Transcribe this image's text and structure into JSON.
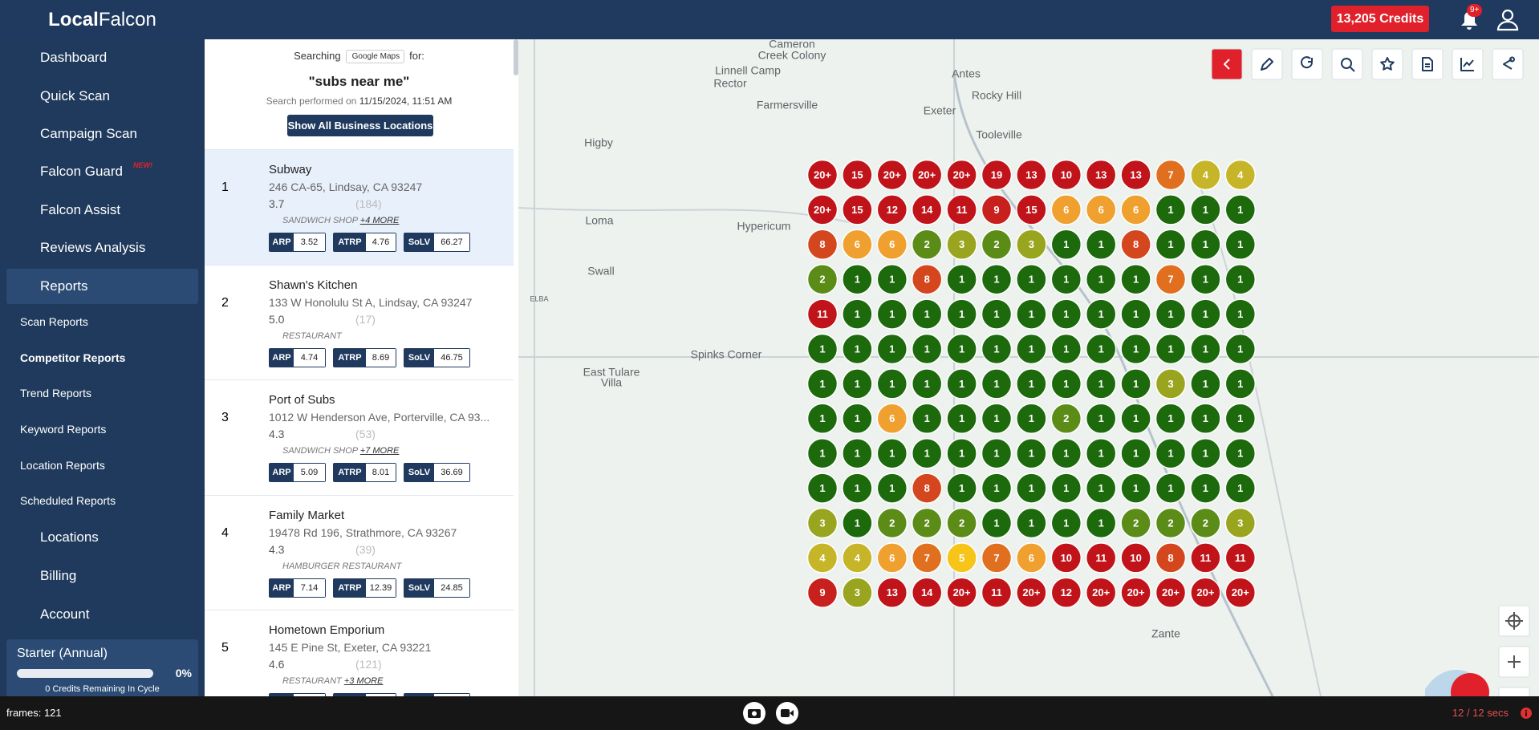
{
  "app": {
    "logo_bold": "Local",
    "logo_light": "Falcon",
    "credits": "13,205 Credits",
    "notifications": "9+"
  },
  "nav": [
    {
      "label": "Dashboard"
    },
    {
      "label": "Quick Scan"
    },
    {
      "label": "Campaign Scan"
    },
    {
      "label": "Falcon Guard",
      "badge": "NEW!"
    },
    {
      "label": "Falcon Assist"
    },
    {
      "label": "Reviews Analysis"
    },
    {
      "label": "Reports"
    }
  ],
  "reports_menu": [
    "Scan Reports",
    "Competitor Reports",
    "Trend Reports",
    "Keyword Reports",
    "Location Reports",
    "Scheduled Reports"
  ],
  "nav_bottom": [
    "Locations",
    "Billing",
    "Account"
  ],
  "plan": {
    "name": "Starter (Annual)",
    "percent": "0%",
    "remaining": "0 Credits Remaining In Cycle"
  },
  "search": {
    "searching": "Searching",
    "engine": "Google Maps",
    "for": "for:",
    "keyword": "\"subs near me\"",
    "performed": "Search performed on",
    "date": "11/15/2024, 11:51 AM",
    "button": "Show All Business Locations"
  },
  "metric_labels": [
    "ARP",
    "ATRP",
    "SoLV"
  ],
  "results": [
    {
      "rank": 1,
      "name": "Subway",
      "address": "246 CA-65, Lindsay, CA 93247",
      "rating": "3.7",
      "reviews": "(184)",
      "category": "SANDWICH SHOP",
      "more": "+4 MORE",
      "metrics": [
        3.52,
        4.76,
        66.27
      ]
    },
    {
      "rank": 2,
      "name": "Shawn's Kitchen",
      "address": "133 W Honolulu St A, Lindsay, CA 93247",
      "rating": "5.0",
      "reviews": "(17)",
      "category": "RESTAURANT",
      "metrics": [
        4.74,
        8.69,
        46.75
      ]
    },
    {
      "rank": 3,
      "name": "Port of Subs",
      "address": "1012 W Henderson Ave, Porterville, CA 93...",
      "rating": "4.3",
      "reviews": "(53)",
      "category": "SANDWICH SHOP",
      "more": "+7 MORE",
      "metrics": [
        5.09,
        8.01,
        36.69
      ]
    },
    {
      "rank": 4,
      "name": "Family Market",
      "address": "19478 Rd 196, Strathmore, CA 93267",
      "rating": "4.3",
      "reviews": "(39)",
      "category": "HAMBURGER RESTAURANT",
      "metrics": [
        7.14,
        12.39,
        24.85
      ]
    },
    {
      "rank": 5,
      "name": "Hometown Emporium",
      "address": "145 E Pine St, Exeter, CA 93221",
      "rating": "4.6",
      "reviews": "(121)",
      "category": "RESTAURANT",
      "more": "+3 MORE"
    }
  ],
  "grid": [
    [
      "20+",
      "15",
      "20+",
      "20+",
      "20+",
      "19",
      "13",
      "10",
      "13",
      "13",
      "7",
      "4",
      "4"
    ],
    [
      "20+",
      "15",
      "12",
      "14",
      "11",
      "9",
      "15",
      "6",
      "6",
      "6",
      "1",
      "1",
      "1"
    ],
    [
      "8",
      "6",
      "6",
      "2",
      "3",
      "2",
      "3",
      "1",
      "1",
      "8",
      "1",
      "1",
      "1"
    ],
    [
      "2",
      "1",
      "1",
      "8",
      "1",
      "1",
      "1",
      "1",
      "1",
      "1",
      "7",
      "1",
      "1"
    ],
    [
      "11",
      "1",
      "1",
      "1",
      "1",
      "1",
      "1",
      "1",
      "1",
      "1",
      "1",
      "1",
      "1"
    ],
    [
      "1",
      "1",
      "1",
      "1",
      "1",
      "1",
      "1",
      "1",
      "1",
      "1",
      "1",
      "1",
      "1"
    ],
    [
      "1",
      "1",
      "1",
      "1",
      "1",
      "1",
      "1",
      "1",
      "1",
      "1",
      "3",
      "1",
      "1"
    ],
    [
      "1",
      "1",
      "6",
      "1",
      "1",
      "1",
      "1",
      "2",
      "1",
      "1",
      "1",
      "1",
      "1"
    ],
    [
      "1",
      "1",
      "1",
      "1",
      "1",
      "1",
      "1",
      "1",
      "1",
      "1",
      "1",
      "1",
      "1"
    ],
    [
      "1",
      "1",
      "1",
      "8",
      "1",
      "1",
      "1",
      "1",
      "1",
      "1",
      "1",
      "1",
      "1"
    ],
    [
      "3",
      "1",
      "2",
      "2",
      "2",
      "1",
      "1",
      "1",
      "1",
      "2",
      "2",
      "2",
      "3"
    ],
    [
      "4",
      "4",
      "6",
      "7",
      "5",
      "7",
      "6",
      "10",
      "11",
      "10",
      "8",
      "11",
      "11"
    ],
    [
      "9",
      "3",
      "13",
      "14",
      "20+",
      "11",
      "20+",
      "12",
      "20+",
      "20+",
      "20+",
      "20+",
      "20+"
    ]
  ],
  "map_labels": [
    "Cameron",
    "Creek Colony",
    "Linnell Camp",
    "Rector",
    "Antes",
    "Farmersville",
    "Rocky Hill",
    "Exeter",
    "Tooleville",
    "Higby",
    "Hypericum",
    "Loma",
    "Swall",
    "Spinks Corner",
    "East Tulare",
    "Villa",
    "Zante",
    "ELBA"
  ],
  "footer": {
    "frames": "frames: 121",
    "timer": "12 / 12 secs"
  }
}
